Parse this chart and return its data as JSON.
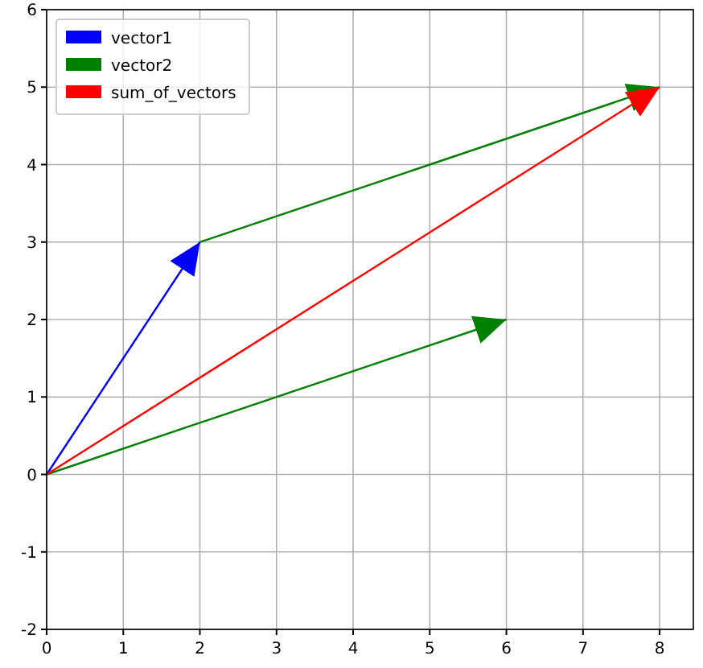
{
  "chart_data": {
    "type": "line",
    "xlim": [
      0,
      8.44
    ],
    "xticks": [
      0,
      1,
      2,
      3,
      4,
      5,
      6,
      7,
      8
    ],
    "ylim": [
      -2,
      6
    ],
    "yticks": [
      -2,
      -1,
      0,
      1,
      2,
      3,
      4,
      5,
      6
    ],
    "grid": true,
    "legend": "top left",
    "series": [
      {
        "name": "vector1",
        "color": "#0000ff",
        "x": [
          0,
          2
        ],
        "values": [
          0,
          3
        ]
      },
      {
        "name": "vector2",
        "color": "#008000",
        "x": [
          0,
          6
        ],
        "values": [
          0,
          2
        ]
      },
      {
        "color": "#008000",
        "x": [
          2,
          8
        ],
        "values": [
          3,
          5
        ]
      },
      {
        "name": "sum_of_vectors",
        "color": "#ff0000",
        "x": [
          0,
          8
        ],
        "values": [
          0,
          5
        ]
      }
    ]
  }
}
